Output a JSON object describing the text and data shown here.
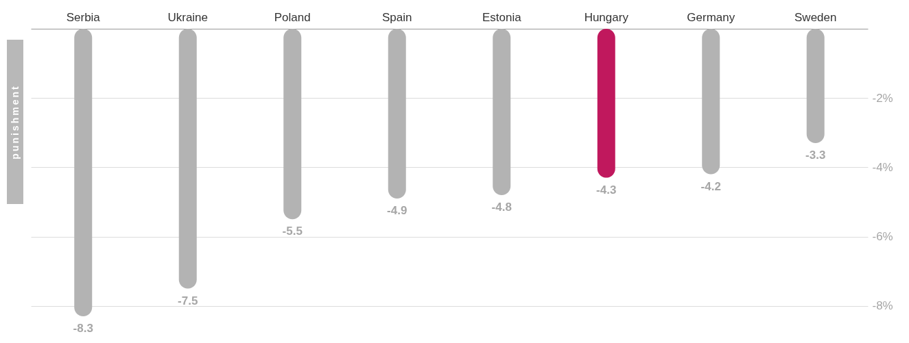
{
  "chart_data": {
    "type": "bar",
    "ylabel": "punishment",
    "categories": [
      "Serbia",
      "Ukraine",
      "Poland",
      "Spain",
      "Estonia",
      "Hungary",
      "Germany",
      "Sweden"
    ],
    "values": [
      -8.3,
      -7.5,
      -5.5,
      -4.9,
      -4.8,
      -4.3,
      -4.2,
      -3.3
    ],
    "colors": [
      "#b3b3b3",
      "#b3b3b3",
      "#b3b3b3",
      "#b3b3b3",
      "#b3b3b3",
      "#c0185d",
      "#b3b3b3",
      "#b3b3b3"
    ],
    "ylim": [
      -8.3,
      0
    ],
    "yticks": [
      {
        "value": -2,
        "label": "-2%"
      },
      {
        "value": -4,
        "label": "-4%"
      },
      {
        "value": -6,
        "label": "-6%"
      },
      {
        "value": -8,
        "label": "-8%"
      }
    ],
    "grid": "y",
    "data_labels": true
  }
}
